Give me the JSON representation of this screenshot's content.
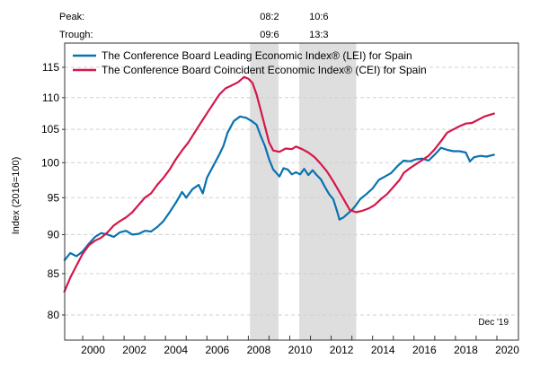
{
  "chart_data": {
    "type": "line",
    "title": "",
    "xlabel": "",
    "ylabel": "Index (2016=100)",
    "y_scale": "log",
    "ylim": [
      77.5,
      118
    ],
    "xlim": [
      1999.1,
      2021.05
    ],
    "yticks": [
      80,
      85,
      90,
      95,
      100,
      105,
      110,
      115
    ],
    "xticks": [
      2000,
      2002,
      2004,
      2006,
      2008,
      2010,
      2012,
      2014,
      2016,
      2018,
      2020
    ],
    "grid": "horizontal-dashed",
    "legend_position": "top-left",
    "annotation": "Dec '19",
    "peak_label": "Peak:",
    "trough_label": "Trough:",
    "recessions": [
      {
        "peak": "08:2",
        "trough": "09:6",
        "start": 2008.08,
        "end": 2009.46
      },
      {
        "peak": "10:6",
        "trough": "13:3",
        "start": 2010.46,
        "end": 2013.21
      }
    ],
    "series": [
      {
        "name": "The Conference Board Leading Economic Index® (LEI) for Spain",
        "color": "#0a72b0",
        "x": [
          1999.1,
          1999.4,
          1999.7,
          2000.0,
          2000.3,
          2000.6,
          2000.9,
          2001.2,
          2001.5,
          2001.8,
          2002.1,
          2002.4,
          2002.7,
          2003.0,
          2003.3,
          2003.6,
          2003.9,
          2004.2,
          2004.5,
          2004.8,
          2005.0,
          2005.3,
          2005.6,
          2005.8,
          2006.0,
          2006.3,
          2006.6,
          2006.8,
          2007.0,
          2007.3,
          2007.6,
          2007.9,
          2008.2,
          2008.4,
          2008.6,
          2008.8,
          2009.0,
          2009.2,
          2009.5,
          2009.7,
          2009.9,
          2010.1,
          2010.3,
          2010.5,
          2010.7,
          2010.9,
          2011.1,
          2011.3,
          2011.5,
          2011.7,
          2011.9,
          2012.1,
          2012.3,
          2012.4,
          2012.6,
          2012.8,
          2013.0,
          2013.2,
          2013.4,
          2013.7,
          2014.0,
          2014.3,
          2014.6,
          2014.9,
          2015.2,
          2015.5,
          2015.8,
          2016.1,
          2016.4,
          2016.7,
          2017.0,
          2017.3,
          2017.6,
          2017.9,
          2018.2,
          2018.5,
          2018.7,
          2018.9,
          2019.2,
          2019.5,
          2019.9
        ],
        "values": [
          86.6,
          87.6,
          87.2,
          87.8,
          88.8,
          89.7,
          90.2,
          90.0,
          89.7,
          90.3,
          90.5,
          90.0,
          90.1,
          90.5,
          90.4,
          91.0,
          91.8,
          93.0,
          94.3,
          95.8,
          95.0,
          96.2,
          96.8,
          95.6,
          97.8,
          99.5,
          101.2,
          102.5,
          104.5,
          106.3,
          107.0,
          106.8,
          106.2,
          105.7,
          104.0,
          102.5,
          100.5,
          99.0,
          98.0,
          99.2,
          99.0,
          98.3,
          98.6,
          98.3,
          99.1,
          98.2,
          98.9,
          98.2,
          97.6,
          96.5,
          95.5,
          94.8,
          93.0,
          92.0,
          92.3,
          92.8,
          93.3,
          94.0,
          94.8,
          95.5,
          96.3,
          97.5,
          98.0,
          98.5,
          99.5,
          100.3,
          100.2,
          100.5,
          100.6,
          100.3,
          101.2,
          102.2,
          101.9,
          101.7,
          101.7,
          101.5,
          100.2,
          100.8,
          101.0,
          100.9,
          101.2
        ]
      },
      {
        "name": "The Conference Board Coincident Economic Index® (CEI) for Spain",
        "color": "#d5174a",
        "x": [
          1999.1,
          1999.4,
          1999.7,
          2000.0,
          2000.3,
          2000.6,
          2000.9,
          2001.2,
          2001.5,
          2001.8,
          2002.1,
          2002.4,
          2002.7,
          2003.0,
          2003.3,
          2003.6,
          2003.9,
          2004.2,
          2004.5,
          2004.8,
          2005.1,
          2005.4,
          2005.7,
          2006.0,
          2006.3,
          2006.6,
          2006.9,
          2007.2,
          2007.5,
          2007.8,
          2008.0,
          2008.2,
          2008.4,
          2008.6,
          2008.8,
          2009.0,
          2009.2,
          2009.5,
          2009.8,
          2010.1,
          2010.3,
          2010.6,
          2010.9,
          2011.2,
          2011.5,
          2011.8,
          2012.1,
          2012.4,
          2012.7,
          2012.9,
          2013.2,
          2013.5,
          2013.8,
          2014.1,
          2014.4,
          2014.7,
          2015.0,
          2015.3,
          2015.5,
          2015.8,
          2016.1,
          2016.4,
          2016.7,
          2017.0,
          2017.3,
          2017.6,
          2017.9,
          2018.2,
          2018.5,
          2018.8,
          2019.1,
          2019.4,
          2019.7,
          2019.9
        ],
        "values": [
          82.7,
          84.5,
          86.0,
          87.5,
          88.6,
          89.2,
          89.6,
          90.3,
          91.2,
          91.8,
          92.3,
          93.0,
          94.0,
          95.0,
          95.6,
          96.8,
          97.8,
          99.0,
          100.5,
          101.8,
          103.0,
          104.5,
          106.0,
          107.5,
          109.0,
          110.5,
          111.5,
          112.0,
          112.5,
          113.4,
          113.1,
          112.4,
          110.5,
          108.0,
          105.5,
          103.0,
          101.8,
          101.6,
          102.1,
          102.0,
          102.4,
          102.0,
          101.5,
          100.8,
          99.8,
          98.7,
          97.3,
          95.8,
          94.3,
          93.3,
          93.0,
          93.2,
          93.5,
          94.0,
          94.8,
          95.5,
          96.5,
          97.5,
          98.5,
          99.2,
          99.8,
          100.4,
          101.0,
          102.0,
          103.2,
          104.5,
          105.0,
          105.5,
          105.9,
          106.0,
          106.5,
          107.0,
          107.3,
          107.5
        ]
      }
    ]
  }
}
